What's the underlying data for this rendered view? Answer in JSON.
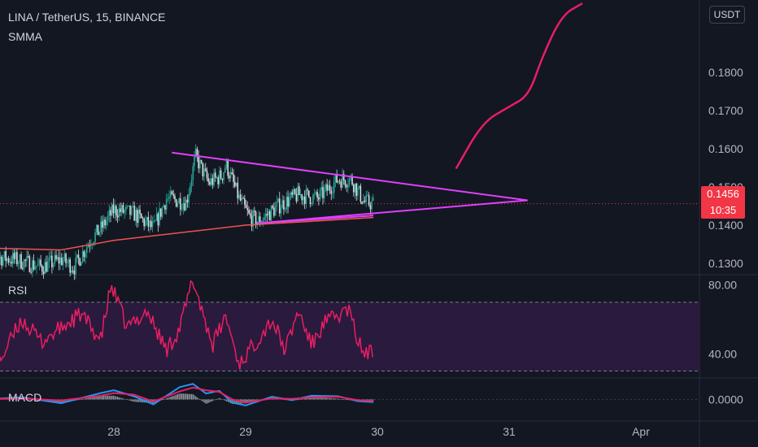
{
  "header": {
    "symbol_line": "LINA / TetherUS, 15, BINANCE",
    "indicator": "SMMA",
    "currency_button": "USDT"
  },
  "price_tag": {
    "price": "0.1456",
    "countdown": "10:35"
  },
  "pane_labels": {
    "rsi": "RSI",
    "macd": "MACD"
  },
  "colors": {
    "background": "#131722",
    "candle_up": "#26a69a",
    "candle_down": "#d9d9d9",
    "smma": "#ef5350",
    "triangle": "#e040fb",
    "projection": "#e91e63",
    "rsi": "#e91e63",
    "rsi_band": "#2a1a3d",
    "macd": "#2196f3",
    "signal": "#e91e63",
    "price_tag": "#f23645"
  },
  "chart_data": [
    {
      "type": "candlestick",
      "title": "LINA / TetherUS, 15, BINANCE",
      "x_ticks": [
        "28",
        "29",
        "30",
        "31",
        "Apr"
      ],
      "y_ticks": [
        "0.1300",
        "0.1400",
        "0.1500",
        "0.1600",
        "0.1700",
        "0.1800"
      ],
      "ylim": [
        0.127,
        0.199
      ],
      "last_price": 0.1456,
      "price_path": [
        [
          27.0,
          0.132
        ],
        [
          27.25,
          0.131
        ],
        [
          27.45,
          0.129
        ],
        [
          27.6,
          0.131
        ],
        [
          27.7,
          0.129
        ],
        [
          27.82,
          0.136
        ],
        [
          27.9,
          0.139
        ],
        [
          28.0,
          0.144
        ],
        [
          28.15,
          0.143
        ],
        [
          28.3,
          0.139
        ],
        [
          28.4,
          0.147
        ],
        [
          28.55,
          0.146
        ],
        [
          28.62,
          0.158
        ],
        [
          28.72,
          0.151
        ],
        [
          28.82,
          0.153
        ],
        [
          28.85,
          0.156
        ],
        [
          28.95,
          0.147
        ],
        [
          29.03,
          0.142
        ],
        [
          29.1,
          0.141
        ],
        [
          29.25,
          0.145
        ],
        [
          29.4,
          0.148
        ],
        [
          29.55,
          0.147
        ],
        [
          29.7,
          0.152
        ],
        [
          29.8,
          0.152
        ],
        [
          29.9,
          0.146
        ],
        [
          29.97,
          0.1456
        ]
      ],
      "smma": [
        [
          27.0,
          0.134
        ],
        [
          27.6,
          0.1335
        ],
        [
          28.0,
          0.136
        ],
        [
          28.5,
          0.138
        ],
        [
          29.0,
          0.14
        ],
        [
          29.5,
          0.141
        ],
        [
          29.97,
          0.142
        ]
      ],
      "triangle": {
        "apex": [
          31.14,
          0.1465
        ],
        "upper_start": [
          28.44,
          0.159
        ],
        "lower_start": [
          29.09,
          0.1405
        ],
        "lower_end": [
          29.97,
          0.1425
        ]
      },
      "projection": [
        [
          30.6,
          0.155
        ],
        [
          30.8,
          0.167
        ],
        [
          31.0,
          0.171
        ],
        [
          31.15,
          0.174
        ],
        [
          31.25,
          0.184
        ],
        [
          31.4,
          0.195
        ],
        [
          31.55,
          0.198
        ]
      ]
    },
    {
      "type": "line",
      "title": "RSI",
      "y_ticks": [
        "40.00",
        "80.00"
      ],
      "levels": [
        30,
        70
      ],
      "ylim": [
        26,
        86
      ],
      "values": [
        [
          27.0,
          51
        ],
        [
          27.15,
          38
        ],
        [
          27.3,
          60
        ],
        [
          27.45,
          47
        ],
        [
          27.6,
          55
        ],
        [
          27.75,
          63
        ],
        [
          27.9,
          48
        ],
        [
          27.98,
          80
        ],
        [
          28.1,
          55
        ],
        [
          28.25,
          65
        ],
        [
          28.4,
          42
        ],
        [
          28.5,
          55
        ],
        [
          28.6,
          83
        ],
        [
          28.75,
          45
        ],
        [
          28.85,
          62
        ],
        [
          28.95,
          34
        ],
        [
          29.05,
          44
        ],
        [
          29.2,
          60
        ],
        [
          29.3,
          42
        ],
        [
          29.4,
          65
        ],
        [
          29.5,
          45
        ],
        [
          29.6,
          58
        ],
        [
          29.7,
          62
        ],
        [
          29.78,
          66
        ],
        [
          29.85,
          48
        ],
        [
          29.9,
          40
        ],
        [
          29.97,
          41
        ]
      ]
    },
    {
      "type": "line",
      "title": "MACD",
      "y_ticks": [
        "0.0000"
      ],
      "ylim": [
        -0.004,
        0.004
      ],
      "series": [
        {
          "name": "MACD",
          "values": [
            [
              27.0,
              0.0
            ],
            [
              27.3,
              0.0004
            ],
            [
              27.6,
              -0.0007
            ],
            [
              27.9,
              0.0012
            ],
            [
              28.0,
              0.0017
            ],
            [
              28.15,
              0.0006
            ],
            [
              28.3,
              -0.0009
            ],
            [
              28.5,
              0.0023
            ],
            [
              28.6,
              0.0029
            ],
            [
              28.7,
              0.0011
            ],
            [
              28.8,
              0.0016
            ],
            [
              28.9,
              -0.0006
            ],
            [
              29.0,
              -0.0011
            ],
            [
              29.2,
              0.0005
            ],
            [
              29.35,
              -0.0001
            ],
            [
              29.5,
              0.0007
            ],
            [
              29.7,
              0.0006
            ],
            [
              29.85,
              -0.0003
            ],
            [
              29.97,
              -0.0005
            ]
          ]
        },
        {
          "name": "Signal",
          "values": [
            [
              27.0,
              0.0
            ],
            [
              27.3,
              0.0002
            ],
            [
              27.6,
              -0.0002
            ],
            [
              27.9,
              0.0007
            ],
            [
              28.0,
              0.0012
            ],
            [
              28.15,
              0.0009
            ],
            [
              28.3,
              -0.0004
            ],
            [
              28.5,
              0.0015
            ],
            [
              28.6,
              0.0022
            ],
            [
              28.7,
              0.0017
            ],
            [
              28.8,
              0.0014
            ],
            [
              28.9,
              0.0
            ],
            [
              29.0,
              -0.0006
            ],
            [
              29.2,
              0.0002
            ],
            [
              29.35,
              0.0001
            ],
            [
              29.5,
              0.0004
            ],
            [
              29.7,
              0.0005
            ],
            [
              29.85,
              -0.0001
            ],
            [
              29.97,
              -0.0003
            ]
          ]
        }
      ]
    }
  ]
}
